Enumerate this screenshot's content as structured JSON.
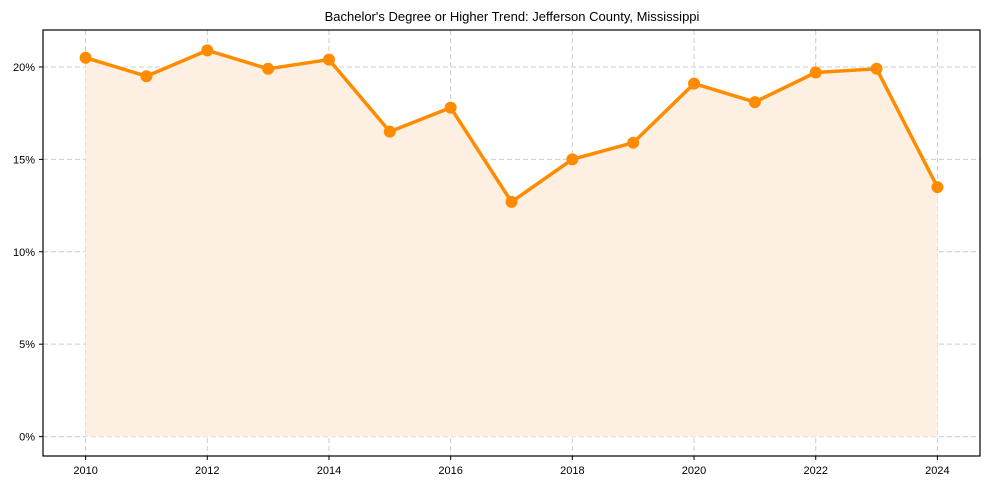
{
  "chart_data": {
    "type": "line",
    "title": "Bachelor's Degree or Higher Trend: Jefferson County, Mississippi",
    "xlabel": "",
    "ylabel": "",
    "x": [
      2010,
      2011,
      2012,
      2013,
      2014,
      2015,
      2016,
      2017,
      2018,
      2019,
      2020,
      2021,
      2022,
      2023,
      2024
    ],
    "series": [
      {
        "name": "Bachelor's Degree or Higher",
        "values": [
          20.5,
          19.5,
          20.9,
          19.9,
          20.4,
          16.5,
          17.8,
          12.7,
          15.0,
          15.9,
          19.1,
          18.1,
          19.7,
          19.9,
          13.5
        ],
        "color": "#FF8C00",
        "fill": "#FDF0E3",
        "marker": "circle"
      }
    ],
    "xticks": [
      2010,
      2012,
      2014,
      2016,
      2018,
      2020,
      2022,
      2024
    ],
    "xtick_labels": [
      "2010",
      "2012",
      "2014",
      "2016",
      "2018",
      "2020",
      "2022",
      "2024"
    ],
    "yticks": [
      0,
      5,
      10,
      15,
      20
    ],
    "ytick_labels": [
      "0%",
      "5%",
      "10%",
      "15%",
      "20%"
    ],
    "xlim": [
      2009.3,
      2024.7
    ],
    "ylim": [
      -1.05,
      22.0
    ],
    "grid": true,
    "grid_style": "dashed",
    "legend": null,
    "area_fill": true
  }
}
